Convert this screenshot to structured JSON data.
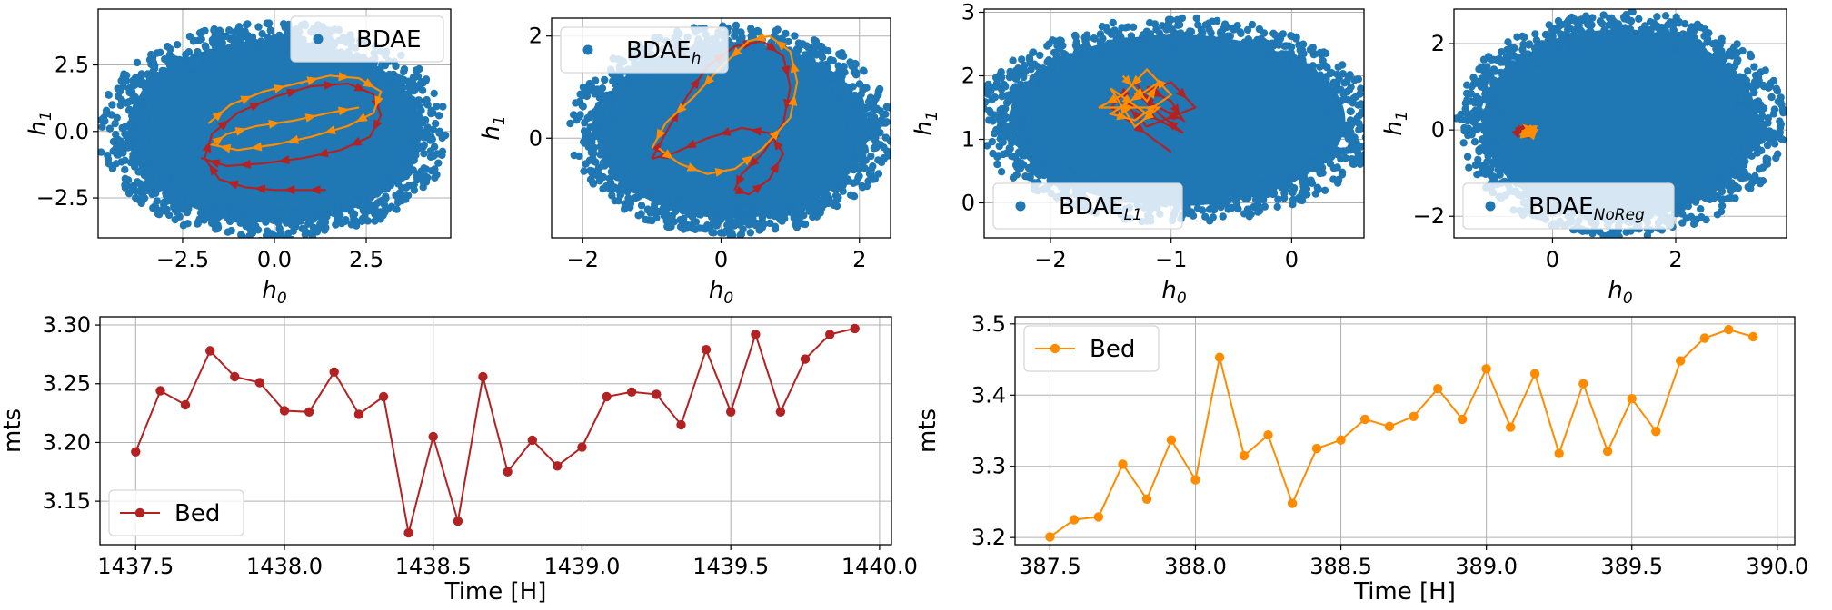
{
  "chart_data": [
    {
      "type": "scatter",
      "xlabel": "h",
      "xlabel_sub": "0",
      "ylabel": "h",
      "ylabel_sub": "1",
      "xlim": [
        -4.8,
        4.8
      ],
      "ylim": [
        -4.0,
        4.6
      ],
      "xticks": [
        -2.5,
        0.0,
        2.5
      ],
      "yticks": [
        -2.5,
        0.0,
        2.5
      ],
      "grid": true,
      "legend": {
        "text": "BDAE",
        "sub": "",
        "placement": "upper right"
      },
      "colors": {
        "points": "#1f77b4",
        "trajectory_a": "#b22222",
        "trajectory_b": "#ff8c00"
      },
      "cloud": {
        "shape": "ellipse",
        "cx": 0,
        "cy": 0,
        "rx": 4.3,
        "ry": 3.7
      },
      "trajectory_a": {
        "x": [
          1.4,
          0.8,
          0.0,
          -0.8,
          -1.5,
          -1.9,
          -1.7,
          -1.0,
          0.0,
          1.0,
          2.0,
          2.7,
          2.9,
          2.6,
          1.8,
          0.8,
          -0.3,
          -1.3,
          -2.0
        ],
        "y": [
          -2.2,
          -2.2,
          -2.2,
          -2.1,
          -1.8,
          -1.0,
          -0.1,
          0.7,
          1.3,
          1.7,
          1.8,
          1.4,
          0.6,
          -0.2,
          -0.7,
          -1.0,
          -1.2,
          -1.3,
          -1.0
        ]
      },
      "trajectory_b": {
        "x": [
          -1.8,
          -1.2,
          -0.3,
          0.6,
          1.5,
          2.3,
          2.9,
          2.7,
          2.0,
          1.0,
          0.0,
          -1.0,
          -1.7,
          -1.3,
          -0.5,
          0.5,
          1.5,
          2.3
        ],
        "y": [
          0.3,
          1.0,
          1.5,
          1.8,
          2.1,
          2.0,
          1.5,
          0.7,
          0.2,
          -0.2,
          -0.5,
          -0.7,
          -0.5,
          -0.1,
          0.2,
          0.4,
          0.7,
          0.9
        ]
      }
    },
    {
      "type": "scatter",
      "xlabel": "h",
      "xlabel_sub": "0",
      "ylabel": "h",
      "ylabel_sub": "1",
      "xlim": [
        -2.45,
        2.45
      ],
      "ylim": [
        -1.95,
        2.35
      ],
      "xticks": [
        -2,
        0,
        2
      ],
      "yticks": [
        0,
        2
      ],
      "grid": true,
      "legend": {
        "text": "BDAE",
        "sub": "h",
        "placement": "upper left"
      },
      "colors": {
        "points": "#1f77b4",
        "trajectory_a": "#b22222",
        "trajectory_b": "#ff8c00"
      },
      "cloud": {
        "shape": "ellipse",
        "cx": 0.15,
        "cy": 0.15,
        "rx": 2.1,
        "ry": 1.85
      },
      "trajectory_a": {
        "x": [
          -1.0,
          -0.8,
          -0.5,
          -0.2,
          0.2,
          0.6,
          0.9,
          1.0,
          0.9,
          0.6,
          0.3,
          0.2,
          0.4,
          0.7,
          0.9,
          0.7,
          0.3,
          -0.2,
          -0.7,
          -1.0
        ],
        "y": [
          -0.4,
          0.1,
          0.8,
          1.4,
          1.8,
          1.9,
          1.6,
          1.0,
          0.3,
          -0.3,
          -0.7,
          -1.0,
          -1.1,
          -0.8,
          -0.3,
          0.1,
          0.2,
          0.0,
          -0.3,
          -0.4
        ]
      },
      "trajectory_b": {
        "x": [
          -0.9,
          -0.6,
          -0.2,
          0.2,
          0.6,
          1.0,
          1.1,
          1.0,
          0.7,
          0.4,
          0.0,
          -0.4,
          -0.8,
          -1.0
        ],
        "y": [
          -0.2,
          -0.5,
          -0.7,
          -0.6,
          -0.2,
          0.4,
          1.1,
          1.7,
          2.0,
          1.9,
          1.4,
          0.8,
          0.3,
          -0.2
        ]
      }
    },
    {
      "type": "scatter",
      "xlabel": "h",
      "xlabel_sub": "0",
      "ylabel": "h",
      "ylabel_sub": "1",
      "xlim": [
        -2.55,
        0.6
      ],
      "ylim": [
        -0.55,
        3.05
      ],
      "xticks": [
        -2,
        -1,
        0
      ],
      "yticks": [
        0,
        1,
        2,
        3
      ],
      "grid": true,
      "legend": {
        "text": "BDAE",
        "sub": "L1",
        "placement": "lower left"
      },
      "colors": {
        "points": "#1f77b4",
        "trajectory_a": "#b22222",
        "trajectory_b": "#ff8c00"
      },
      "cloud": {
        "shape": "ellipse",
        "cx": -0.95,
        "cy": 1.3,
        "rx": 1.5,
        "ry": 1.45
      },
      "trajectory_a": {
        "x": [
          -1.2,
          -1.0,
          -0.9,
          -1.1,
          -1.3,
          -1.0,
          -0.8,
          -1.2,
          -1.4,
          -0.9,
          -1.1,
          -1.3,
          -1.5,
          -1.0
        ],
        "y": [
          1.8,
          1.6,
          1.3,
          1.5,
          1.7,
          1.9,
          1.5,
          1.2,
          1.6,
          1.1,
          1.4,
          1.9,
          1.5,
          0.8
        ]
      },
      "trajectory_b": {
        "x": [
          -1.4,
          -1.3,
          -1.2,
          -1.1,
          -1.5,
          -1.3,
          -1.0,
          -1.2,
          -1.4,
          -1.6,
          -1.1,
          -1.3,
          -1.5,
          -1.2
        ],
        "y": [
          2.0,
          1.8,
          1.6,
          1.9,
          1.4,
          1.3,
          1.7,
          2.1,
          1.7,
          1.5,
          1.5,
          1.2,
          1.8,
          1.4
        ]
      }
    },
    {
      "type": "scatter",
      "xlabel": "h",
      "xlabel_sub": "0",
      "ylabel": "h",
      "ylabel_sub": "1",
      "xlim": [
        -1.6,
        3.8
      ],
      "ylim": [
        -2.5,
        2.8
      ],
      "xticks": [
        0,
        2
      ],
      "yticks": [
        -2,
        0,
        2
      ],
      "grid": true,
      "legend": {
        "text": "BDAE",
        "sub": "NoReg",
        "placement": "lower left"
      },
      "colors": {
        "points": "#1f77b4",
        "trajectory_a": "#b22222",
        "trajectory_b": "#ff8c00"
      },
      "cloud": {
        "shape": "ellipse",
        "cx": 1.1,
        "cy": 0.15,
        "rx": 2.4,
        "ry": 2.35
      },
      "trajectory_a": {
        "x": [
          -0.5,
          -0.4,
          -0.6,
          -0.5,
          -0.3,
          -0.6,
          -0.4,
          -0.5
        ],
        "y": [
          0.0,
          0.1,
          -0.1,
          0.05,
          -0.05,
          0.05,
          -0.1,
          -0.05
        ]
      },
      "trajectory_b": {
        "x": [
          -0.4,
          -0.3,
          -0.5,
          -0.35,
          -0.25,
          -0.45,
          -0.3
        ],
        "y": [
          -0.05,
          0.05,
          -0.1,
          -0.15,
          0.0,
          0.1,
          -0.2
        ]
      }
    },
    {
      "type": "line",
      "xlabel": "Time [H]",
      "ylabel": "mts",
      "xlim": [
        1437.38,
        1440.04
      ],
      "ylim": [
        3.113,
        3.307
      ],
      "xticks": [
        "1437.5",
        "1438.0",
        "1438.5",
        "1439.0",
        "1439.5",
        "1440.0"
      ],
      "yticks": [
        "3.15",
        "3.20",
        "3.25",
        "3.30"
      ],
      "grid": true,
      "legend": {
        "text": "Bed",
        "placement": "lower left"
      },
      "color": "#b22222",
      "series": [
        {
          "name": "Bed",
          "x": [
            1437.5,
            1437.583,
            1437.667,
            1437.75,
            1437.833,
            1437.917,
            1438.0,
            1438.083,
            1438.167,
            1438.25,
            1438.333,
            1438.417,
            1438.5,
            1438.583,
            1438.667,
            1438.75,
            1438.833,
            1438.917,
            1439.0,
            1439.083,
            1439.167,
            1439.25,
            1439.333,
            1439.417,
            1439.5,
            1439.583,
            1439.667,
            1439.75,
            1439.833,
            1439.917
          ],
          "y": [
            3.192,
            3.244,
            3.232,
            3.278,
            3.256,
            3.251,
            3.227,
            3.226,
            3.26,
            3.224,
            3.239,
            3.123,
            3.205,
            3.133,
            3.256,
            3.175,
            3.202,
            3.18,
            3.196,
            3.239,
            3.243,
            3.241,
            3.215,
            3.279,
            3.226,
            3.292,
            3.226,
            3.271,
            3.292,
            3.297
          ]
        }
      ]
    },
    {
      "type": "line",
      "xlabel": "Time [H]",
      "ylabel": "mts",
      "xlim": [
        387.38,
        390.06
      ],
      "ylim": [
        3.19,
        3.51
      ],
      "xticks": [
        "387.5",
        "388.0",
        "388.5",
        "389.0",
        "389.5",
        "390.0"
      ],
      "yticks": [
        "3.2",
        "3.3",
        "3.4",
        "3.5"
      ],
      "grid": true,
      "legend": {
        "text": "Bed",
        "placement": "upper left"
      },
      "color": "#ff8c00",
      "series": [
        {
          "name": "Bed",
          "x": [
            387.5,
            387.583,
            387.667,
            387.75,
            387.833,
            387.917,
            388.0,
            388.083,
            388.167,
            388.25,
            388.333,
            388.417,
            388.5,
            388.583,
            388.667,
            388.75,
            388.833,
            388.917,
            389.0,
            389.083,
            389.167,
            389.25,
            389.333,
            389.417,
            389.5,
            389.583,
            389.667,
            389.75,
            389.833,
            389.917
          ],
          "y": [
            3.201,
            3.225,
            3.229,
            3.303,
            3.254,
            3.337,
            3.281,
            3.453,
            3.315,
            3.344,
            3.248,
            3.325,
            3.337,
            3.366,
            3.356,
            3.37,
            3.409,
            3.366,
            3.437,
            3.355,
            3.43,
            3.318,
            3.416,
            3.321,
            3.395,
            3.349,
            3.448,
            3.48,
            3.492,
            3.482
          ]
        }
      ]
    }
  ]
}
